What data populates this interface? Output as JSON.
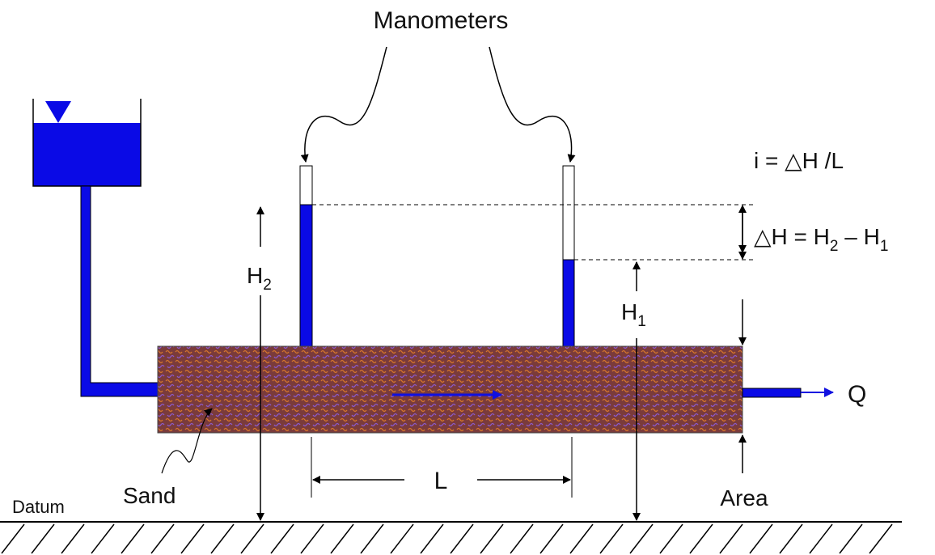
{
  "title": "Manometers",
  "gradient_equation": "i = △H /L",
  "head_loss_equation": {
    "lhs": "△H = H",
    "sub_a": "2",
    "mid": " – H",
    "sub_b": "1"
  },
  "h2_label": {
    "base": "H",
    "sub": "2"
  },
  "h1_label": {
    "base": "H",
    "sub": "1"
  },
  "flow_label": "Q",
  "length_label": "L",
  "sand_label": "Sand",
  "datum_label": "Datum",
  "area_label": "Area"
}
